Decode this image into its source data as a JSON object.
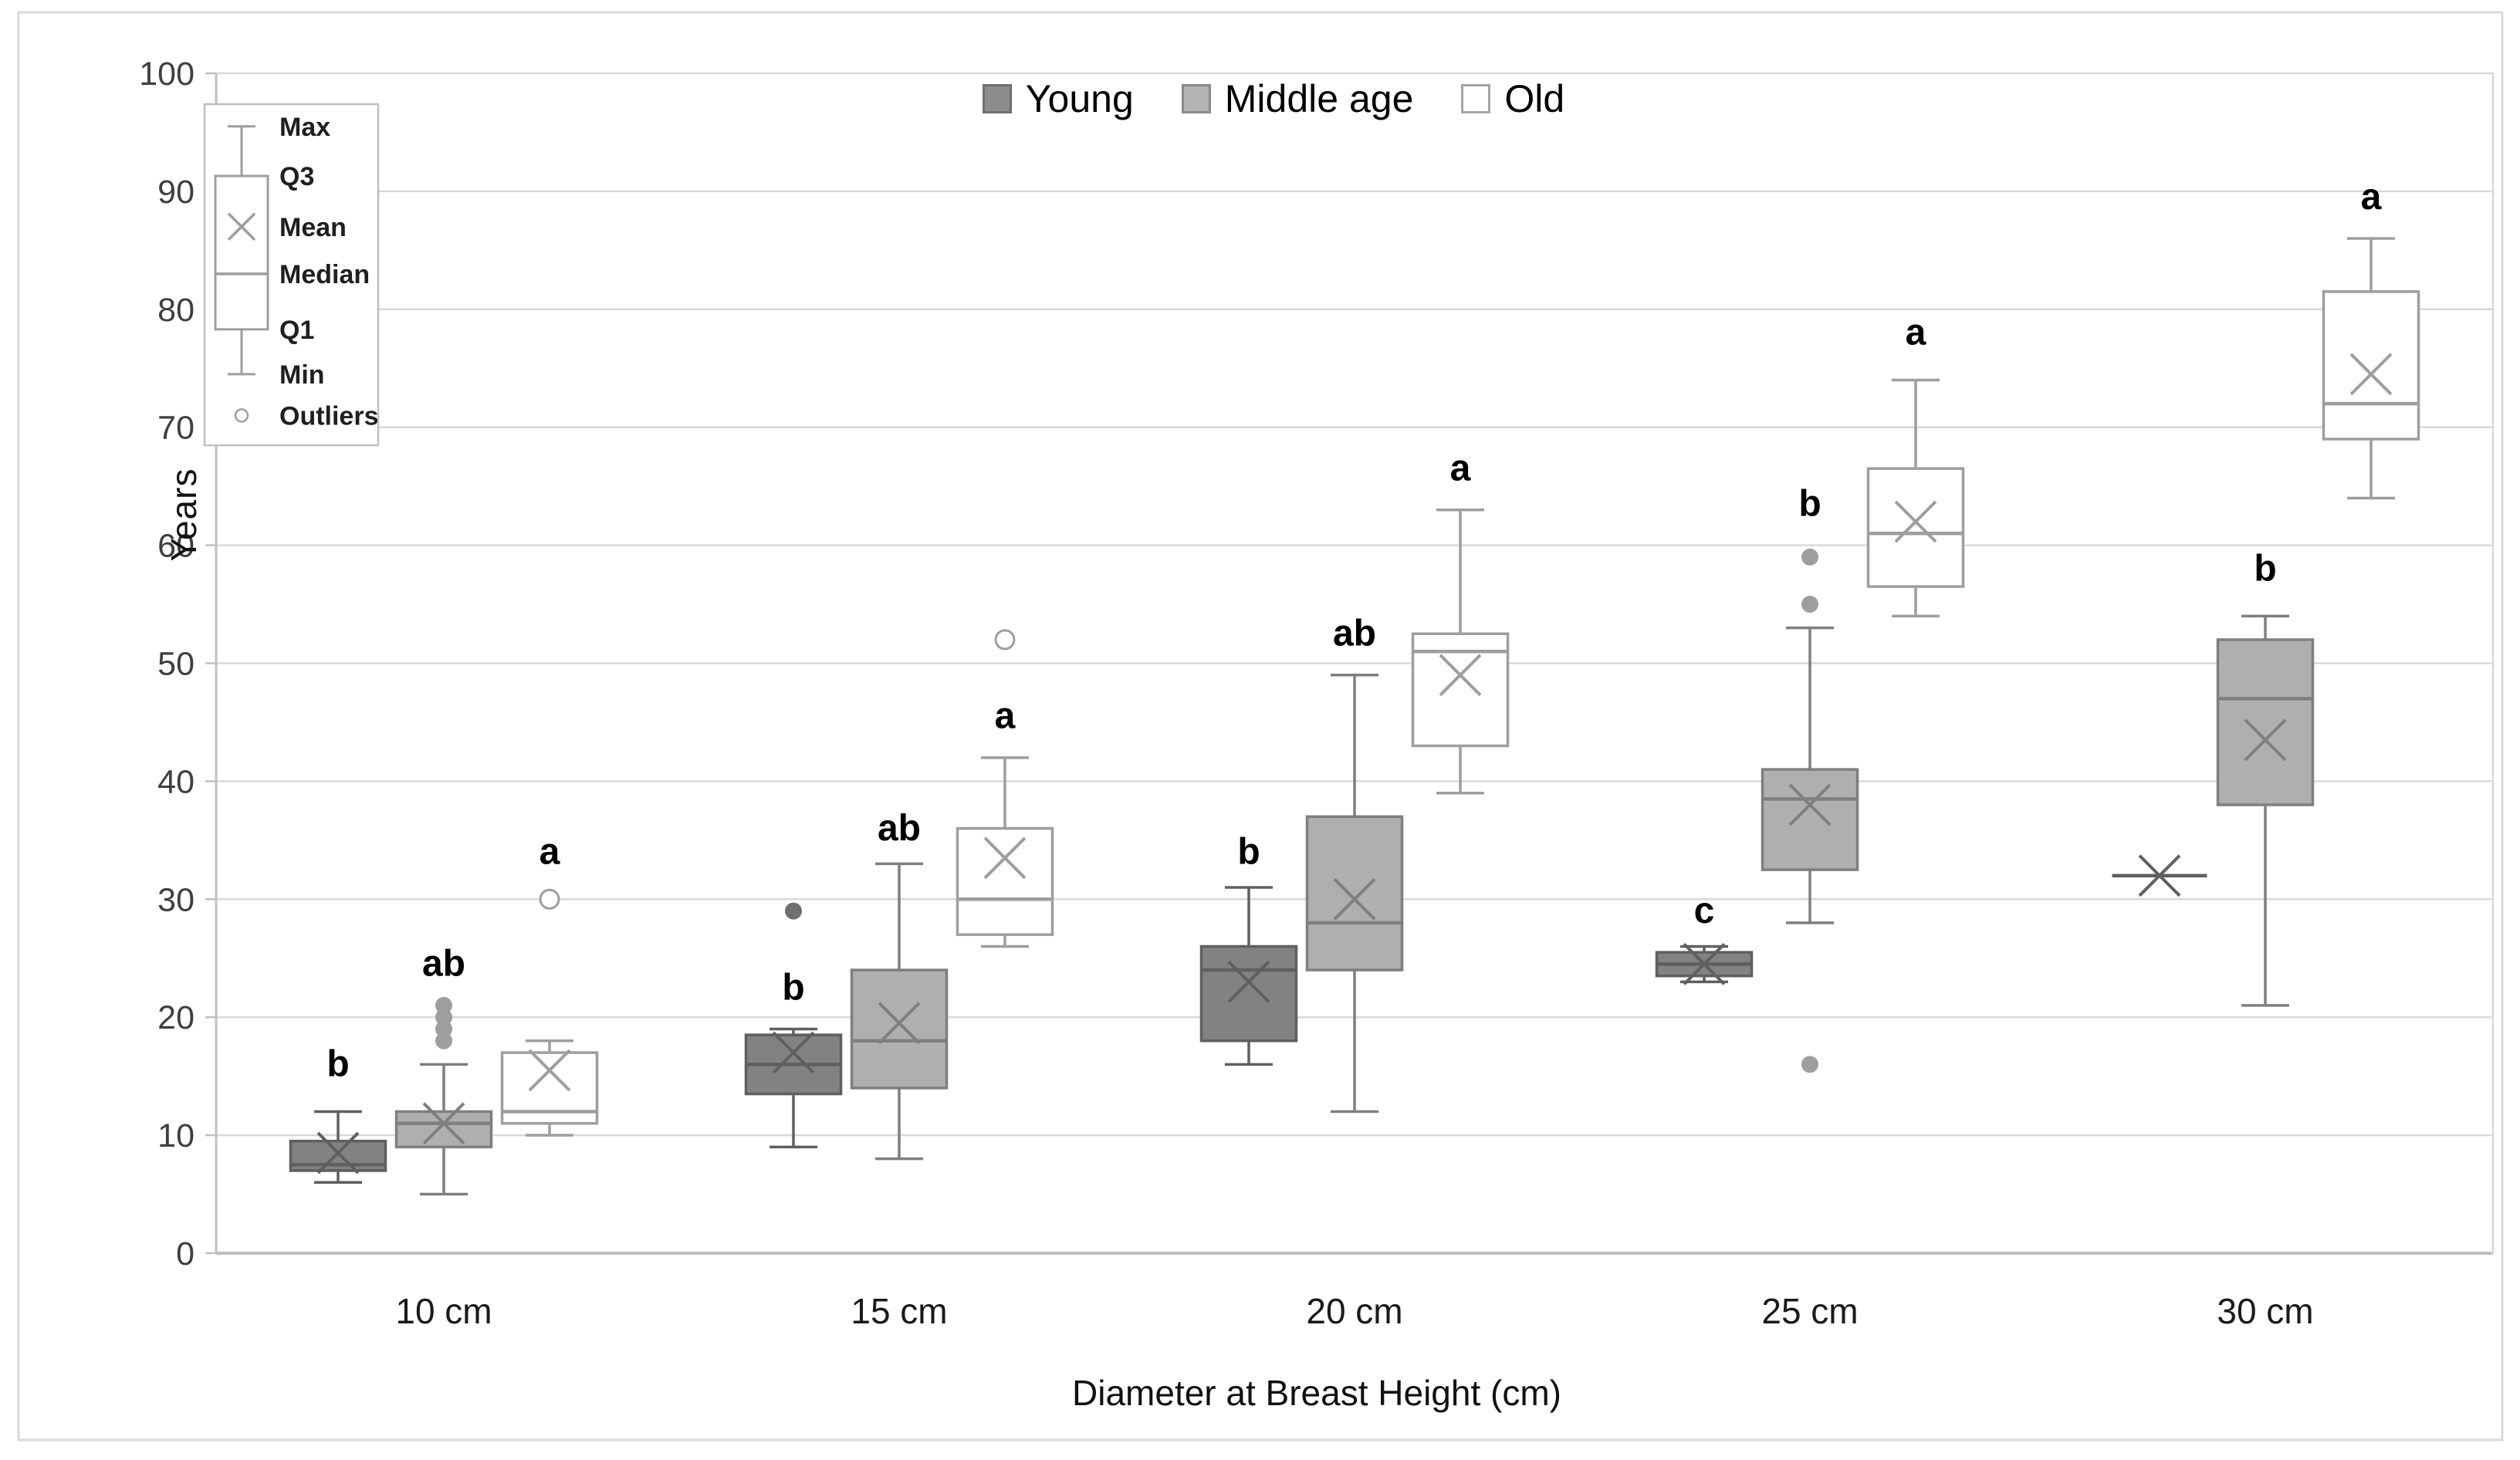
{
  "axes": {
    "y": {
      "title": "Years",
      "min": 0,
      "max": 100,
      "ticks": [
        0,
        10,
        20,
        30,
        40,
        50,
        60,
        70,
        80,
        90,
        100
      ]
    },
    "x": {
      "title": "Diameter at Breast Height (cm)",
      "categories": [
        "10 cm",
        "15 cm",
        "20 cm",
        "25 cm",
        "30 cm"
      ]
    }
  },
  "legend": {
    "items": [
      {
        "label": "Young",
        "fill": "#8C8C8C",
        "stroke": "#6E6E6E"
      },
      {
        "label": "Middle age",
        "fill": "#B3B3B3",
        "stroke": "#8A8A8A"
      },
      {
        "label": "Old",
        "fill": "#FFFFFF",
        "stroke": "#A6A6A6"
      }
    ]
  },
  "anatomy_legend": {
    "entries": [
      {
        "label": "Max",
        "key": "max"
      },
      {
        "label": "Q3",
        "key": "q3"
      },
      {
        "label": "Mean",
        "key": "mean"
      },
      {
        "label": "Median",
        "key": "median"
      },
      {
        "label": "Q1",
        "key": "q1"
      },
      {
        "label": "Min",
        "key": "min"
      },
      {
        "label": "Outliers",
        "key": "outlier"
      }
    ],
    "sample": {
      "max": 95.5,
      "q3": 91.3,
      "mean": 87,
      "median": 83,
      "q1": 78.3,
      "min": 74.5,
      "outlier": 71
    }
  },
  "colors": {
    "gridline": "#D9D9D9",
    "axis": "#BFBFBF",
    "tick_label": "#3F3F3F",
    "category_label": "#1A1A1A",
    "sig_letter": "#000000",
    "legend_frame": "#BFBFBF"
  },
  "chart_data": {
    "type": "boxplot",
    "title": "",
    "xlabel": "Diameter at Breast Height (cm)",
    "ylabel": "Years",
    "ylim": [
      0,
      100
    ],
    "grid": true,
    "legend_position": "top-center",
    "categories": [
      "10 cm",
      "15 cm",
      "20 cm",
      "25 cm",
      "30 cm"
    ],
    "series": [
      {
        "name": "Young",
        "fill": "#828282",
        "stroke": "#5F5F5F",
        "outlier_style": "filled-dark",
        "boxes": [
          {
            "min": 6,
            "q1": 7,
            "median": 7.5,
            "mean": 8.5,
            "q3": 9.5,
            "max": 12,
            "outliers": [],
            "letter": "b",
            "letter_y": 15
          },
          {
            "min": 9,
            "q1": 13.5,
            "median": 16,
            "mean": 17,
            "q3": 18.5,
            "max": 19,
            "outliers": [
              29
            ],
            "letter": "b",
            "letter_y": 21.5
          },
          {
            "min": 16,
            "q1": 18,
            "median": 24,
            "mean": 23,
            "q3": 26,
            "max": 31,
            "outliers": [],
            "letter": "b",
            "letter_y": 33
          },
          {
            "min": 23,
            "q1": 23.5,
            "median": 24.5,
            "mean": 24.5,
            "q3": 25.5,
            "max": 26,
            "outliers": [],
            "letter": "c",
            "letter_y": 28
          },
          {
            "min": 32,
            "q1": 32,
            "median": 32,
            "mean": 32,
            "q3": 32,
            "max": 32,
            "outliers": [],
            "letter": "",
            "letter_y": null
          }
        ]
      },
      {
        "name": "Middle age",
        "fill": "#AFAFAF",
        "stroke": "#7F7F7F",
        "outlier_style": "filled",
        "boxes": [
          {
            "min": 5,
            "q1": 9,
            "median": 11,
            "mean": 11,
            "q3": 12,
            "max": 16,
            "outliers": [
              18,
              19,
              20,
              21
            ],
            "letter": "ab",
            "letter_y": 23.5
          },
          {
            "min": 8,
            "q1": 14,
            "median": 18,
            "mean": 19.5,
            "q3": 24,
            "max": 33,
            "outliers": [],
            "letter": "ab",
            "letter_y": 35
          },
          {
            "min": 12,
            "q1": 24,
            "median": 28,
            "mean": 30,
            "q3": 37,
            "max": 49,
            "outliers": [],
            "letter": "ab",
            "letter_y": 51.5
          },
          {
            "min": 28,
            "q1": 32.5,
            "median": 38.5,
            "mean": 38,
            "q3": 41,
            "max": 53,
            "outliers": [
              55,
              59,
              16
            ],
            "letter": "b",
            "letter_y": 62.5
          },
          {
            "min": 21,
            "q1": 38,
            "median": 47,
            "mean": 43.5,
            "q3": 52,
            "max": 54,
            "outliers": [],
            "letter": "b",
            "letter_y": 57
          }
        ]
      },
      {
        "name": "Old",
        "fill": "#FFFFFF",
        "stroke": "#9E9E9E",
        "outlier_style": "open",
        "boxes": [
          {
            "min": 10,
            "q1": 11,
            "median": 12,
            "mean": 15.5,
            "q3": 17,
            "max": 18,
            "outliers": [
              30
            ],
            "letter": "a",
            "letter_y": 33
          },
          {
            "min": 26,
            "q1": 27,
            "median": 30,
            "mean": 33.5,
            "q3": 36,
            "max": 42,
            "outliers": [
              52
            ],
            "letter": "a",
            "letter_y": 44.5
          },
          {
            "min": 39,
            "q1": 43,
            "median": 51,
            "mean": 49,
            "q3": 52.5,
            "max": 63,
            "outliers": [],
            "letter": "a",
            "letter_y": 65.5
          },
          {
            "min": 54,
            "q1": 56.5,
            "median": 61,
            "mean": 62,
            "q3": 66.5,
            "max": 74,
            "outliers": [],
            "letter": "a",
            "letter_y": 77
          },
          {
            "min": 64,
            "q1": 69,
            "median": 72,
            "mean": 74.5,
            "q3": 81.5,
            "max": 86,
            "outliers": [],
            "letter": "a",
            "letter_y": 88.5
          }
        ]
      }
    ]
  }
}
